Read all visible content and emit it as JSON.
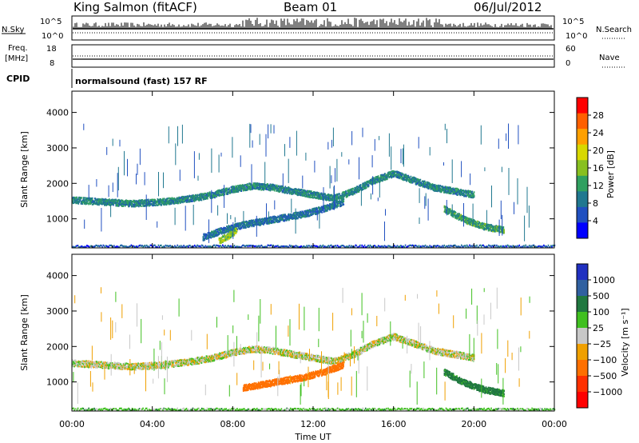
{
  "header": {
    "station": "King Salmon (fitACF)",
    "beam": "Beam 01",
    "date": "06/Jul/2012"
  },
  "strip": {
    "nsky_label": "N.Sky",
    "nsky_ticks": [
      "10^5",
      "10^0"
    ],
    "nsearch_label": "N.Search",
    "nsearch_ticks": [
      "10^5",
      "10^0"
    ],
    "freq_label_1": "Freq.",
    "freq_label_2": "[MHz]",
    "freq_ticks": [
      "18",
      "8"
    ],
    "nave_label": "Nave",
    "nave_ticks": [
      "60",
      "0"
    ],
    "cpid_label": "CPID",
    "cpid_text": "normalsound (fast) 157 RF"
  },
  "colorbars": {
    "power": {
      "label": "Power [dB]",
      "ticks": [
        "28",
        "24",
        "20",
        "16",
        "12",
        "8",
        "4"
      ],
      "colors": [
        "#ff0000",
        "#ff6000",
        "#ffa000",
        "#d8d800",
        "#88c020",
        "#30a060",
        "#207890",
        "#2050c0",
        "#0000ff"
      ]
    },
    "velocity": {
      "label": "Velocity [m s⁻¹]",
      "ticks": [
        "1000",
        "500",
        "100",
        "25",
        "−25",
        "−100",
        "−500",
        "−1000"
      ],
      "colors": [
        "#2030c0",
        "#3060a0",
        "#207840",
        "#40c020",
        "#c8c8c8",
        "#f0a000",
        "#ff7000",
        "#ff3000",
        "#ff0000"
      ]
    }
  },
  "chart_data": [
    {
      "type": "heatmap",
      "title": "",
      "xlabel": "",
      "ylabel": "Slant Range [km]",
      "xlim": [
        "00:00",
        "24:00"
      ],
      "ylim": [
        180,
        4600
      ],
      "x_ticks": [
        "00:00",
        "04:00",
        "08:00",
        "12:00",
        "16:00",
        "20:00",
        "00:00"
      ],
      "y_ticks": [
        1000,
        2000,
        3000,
        4000
      ],
      "value": "Power [dB]",
      "bands": [
        {
          "x_hours": [
            0,
            1.5,
            3,
            4.5,
            6,
            7,
            8,
            9,
            10,
            11,
            12,
            13,
            14,
            15,
            16,
            17,
            18,
            19,
            20
          ],
          "y_km": [
            1550,
            1500,
            1450,
            1500,
            1600,
            1700,
            1850,
            1950,
            1900,
            1800,
            1700,
            1600,
            1800,
            2100,
            2300,
            2100,
            1900,
            1800,
            1700
          ],
          "level_db": 10
        },
        {
          "x_hours": [
            6.5,
            7.5,
            8.5,
            9.5,
            10.5,
            11.5,
            12.5,
            13.5
          ],
          "y_km": [
            500,
            700,
            850,
            950,
            1050,
            1150,
            1300,
            1500
          ],
          "level_db": 8
        },
        {
          "x_hours": [
            7.3,
            7.8,
            8.2
          ],
          "y_km": [
            400,
            550,
            700
          ],
          "level_db": 16
        },
        {
          "x_hours": [
            18.5,
            19.5,
            20.5,
            21.5
          ],
          "y_km": [
            1300,
            1000,
            800,
            700
          ],
          "level_db": 12
        },
        {
          "x_hours": [
            0,
            24
          ],
          "y_km": [
            250,
            250
          ],
          "level_db": 6
        }
      ]
    },
    {
      "type": "heatmap",
      "title": "",
      "xlabel": "Time UT",
      "ylabel": "Slant Range [km]",
      "xlim": [
        "00:00",
        "24:00"
      ],
      "ylim": [
        180,
        4600
      ],
      "x_ticks": [
        "00:00",
        "04:00",
        "08:00",
        "12:00",
        "16:00",
        "20:00",
        "00:00"
      ],
      "y_ticks": [
        1000,
        2000,
        3000,
        4000
      ],
      "value": "Velocity [m s⁻¹]",
      "bands": [
        {
          "x_hours": [
            0,
            1.5,
            3,
            4.5,
            6,
            7,
            8,
            9,
            10,
            11,
            12,
            13,
            14,
            15,
            16,
            17,
            18,
            19,
            20
          ],
          "y_km": [
            1550,
            1500,
            1450,
            1500,
            1600,
            1700,
            1850,
            1950,
            1900,
            1800,
            1700,
            1600,
            1800,
            2100,
            2300,
            2100,
            1900,
            1800,
            1700
          ],
          "level_ms": 0
        },
        {
          "x_hours": [
            8.5,
            9.5,
            10.5,
            11.5,
            12.5,
            13.5
          ],
          "y_km": [
            850,
            950,
            1050,
            1150,
            1300,
            1500
          ],
          "level_ms": -200
        },
        {
          "x_hours": [
            18.5,
            19.5,
            20.5,
            21.5
          ],
          "y_km": [
            1300,
            1000,
            800,
            700
          ],
          "level_ms": 150
        },
        {
          "x_hours": [
            0,
            24
          ],
          "y_km": [
            250,
            250
          ],
          "level_ms": 60
        }
      ]
    }
  ]
}
